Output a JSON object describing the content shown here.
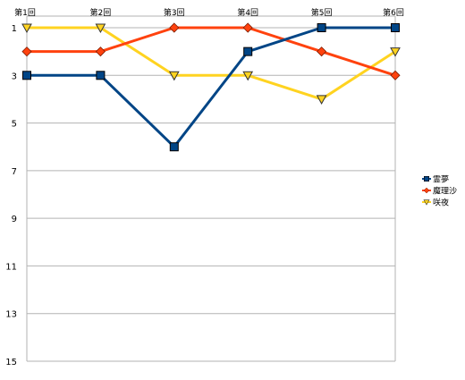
{
  "chart_data": {
    "type": "line",
    "categories": [
      "第1回",
      "第2回",
      "第3回",
      "第4回",
      "第5回",
      "第6回"
    ],
    "y_axis": {
      "reversed": true,
      "min": 1,
      "max": 15,
      "tick_labels": [
        "1",
        "3",
        "5",
        "7",
        "9",
        "11",
        "13",
        "15"
      ]
    },
    "x_axis_position": "top",
    "grid": true,
    "legend_position": "right",
    "series": [
      {
        "name": "霊夢",
        "values": [
          3,
          3,
          6,
          2,
          1,
          1
        ],
        "color": "#004586",
        "marker": "square"
      },
      {
        "name": "魔理沙",
        "values": [
          2,
          2,
          1,
          1,
          2,
          3
        ],
        "color": "#ff420e",
        "marker": "diamond"
      },
      {
        "name": "咲夜",
        "values": [
          1,
          1,
          3,
          3,
          4,
          2
        ],
        "color": "#ffd320",
        "marker": "triangle-down"
      }
    ]
  }
}
